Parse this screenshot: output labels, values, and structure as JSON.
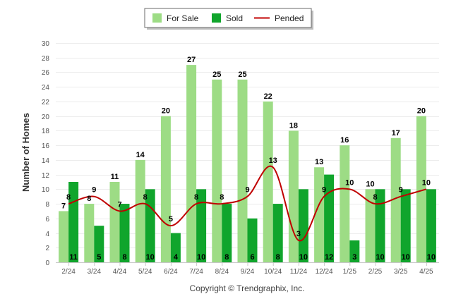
{
  "chart_data": {
    "type": "bar",
    "categories": [
      "2/24",
      "3/24",
      "4/24",
      "5/24",
      "6/24",
      "7/24",
      "8/24",
      "9/24",
      "10/24",
      "11/24",
      "12/24",
      "1/25",
      "2/25",
      "3/25",
      "4/25"
    ],
    "series": [
      {
        "name": "For Sale",
        "type": "bar",
        "color": "#9ddc85",
        "values": [
          7,
          8,
          11,
          14,
          20,
          27,
          25,
          25,
          22,
          18,
          13,
          16,
          10,
          17,
          20
        ]
      },
      {
        "name": "Sold",
        "type": "bar",
        "color": "#10a52c",
        "values": [
          11,
          5,
          8,
          10,
          4,
          10,
          8,
          6,
          8,
          10,
          12,
          3,
          10,
          10,
          10
        ]
      },
      {
        "name": "Pended",
        "type": "line",
        "color": "#c00000",
        "values": [
          8,
          9,
          7,
          8,
          5,
          8,
          8,
          9,
          13,
          3,
          9,
          10,
          8,
          9,
          10
        ]
      }
    ],
    "ylabel": "Number of Homes",
    "xlabel": "",
    "ylim": [
      0,
      30
    ],
    "yticks": [
      0,
      2,
      4,
      6,
      8,
      10,
      12,
      14,
      16,
      18,
      20,
      22,
      24,
      26,
      28,
      30
    ],
    "grid": true,
    "legend_position": "top-center",
    "credit": "Copyright © Trendgraphix, Inc."
  }
}
